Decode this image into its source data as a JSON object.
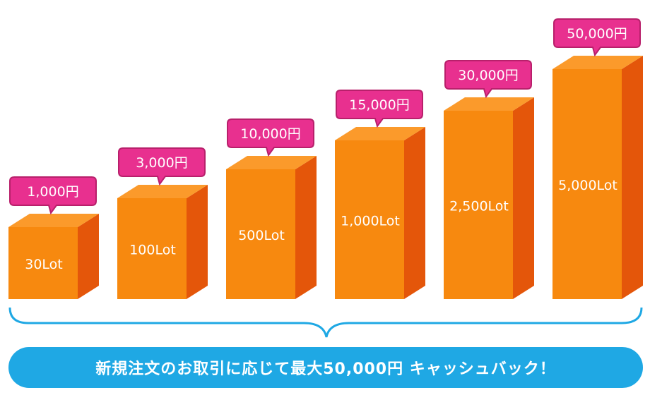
{
  "chart_data": {
    "type": "bar",
    "style": "3d-column",
    "categories": [
      "30Lot",
      "100Lot",
      "500Lot",
      "1,000Lot",
      "2,500Lot",
      "5,000Lot"
    ],
    "lots": [
      30,
      100,
      500,
      1000,
      2500,
      5000
    ],
    "cashback_yen": [
      1000,
      3000,
      10000,
      15000,
      30000,
      50000
    ],
    "cashback_labels": [
      "1,000円",
      "3,000円",
      "10,000円",
      "15,000円",
      "30,000円",
      "50,000円"
    ],
    "title": "",
    "xlabel": "",
    "ylabel": "",
    "grid": false
  },
  "banner": {
    "text": "新規注文のお取引に応じて最大50,000円 キャッシュバック！"
  },
  "colors": {
    "bar_front": "#f7890f",
    "bar_top": "#fb9a2b",
    "bar_side": "#e4560a",
    "bubble": "#e8308f",
    "bubble_border": "#b8206b",
    "brace": "#1fa8e4",
    "banner": "#1fa8e4"
  }
}
